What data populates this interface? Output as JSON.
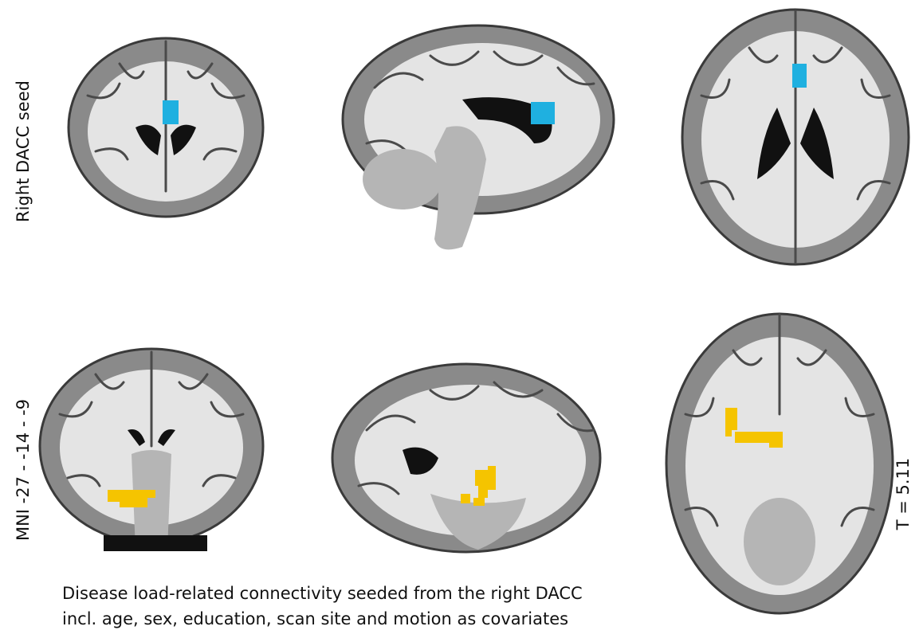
{
  "labels": {
    "row_top": "Right DACC seed",
    "row_bottom": "MNI -27 - -14 - -9",
    "threshold": "T = 5.11"
  },
  "caption": [
    "Disease load-related connectivity seeded from the right DACC",
    "incl. age, sex, education, scan site and motion as covariates"
  ]
}
